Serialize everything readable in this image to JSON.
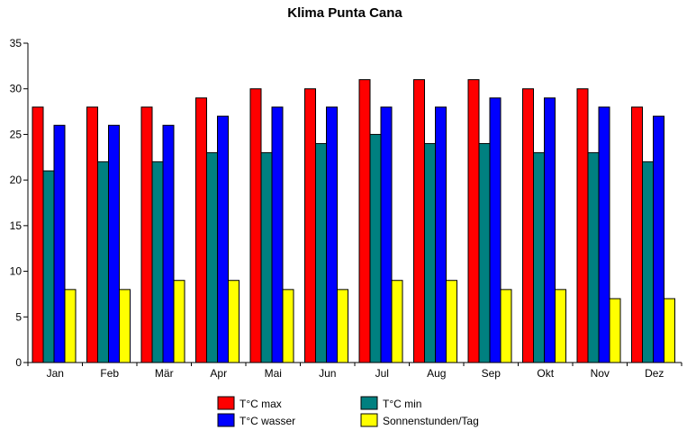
{
  "chart_data": {
    "type": "bar",
    "title": "Klima Punta Cana",
    "xlabel": "",
    "ylabel": "",
    "categories": [
      "Jan",
      "Feb",
      "Mär",
      "Apr",
      "Mai",
      "Jun",
      "Jul",
      "Aug",
      "Sep",
      "Okt",
      "Nov",
      "Dez"
    ],
    "series": [
      {
        "name": "T°C max",
        "color": "#ff0000",
        "values": [
          28,
          28,
          28,
          29,
          30,
          30,
          31,
          31,
          31,
          30,
          30,
          28
        ]
      },
      {
        "name": "T°C min",
        "color": "#008080",
        "values": [
          21,
          22,
          22,
          23,
          23,
          24,
          25,
          24,
          24,
          23,
          23,
          22
        ]
      },
      {
        "name": "T°C wasser",
        "color": "#0000ff",
        "values": [
          26,
          26,
          26,
          27,
          28,
          28,
          28,
          28,
          29,
          29,
          28,
          27
        ]
      },
      {
        "name": "Sonnenstunden/Tag",
        "color": "#ffff00",
        "values": [
          8,
          8,
          9,
          9,
          8,
          8,
          9,
          9,
          8,
          8,
          7,
          7
        ]
      }
    ],
    "ylim": [
      0,
      35
    ],
    "yticks": [
      0,
      5,
      10,
      15,
      20,
      25,
      30,
      35
    ],
    "grid": false,
    "legend_position": "bottom"
  }
}
